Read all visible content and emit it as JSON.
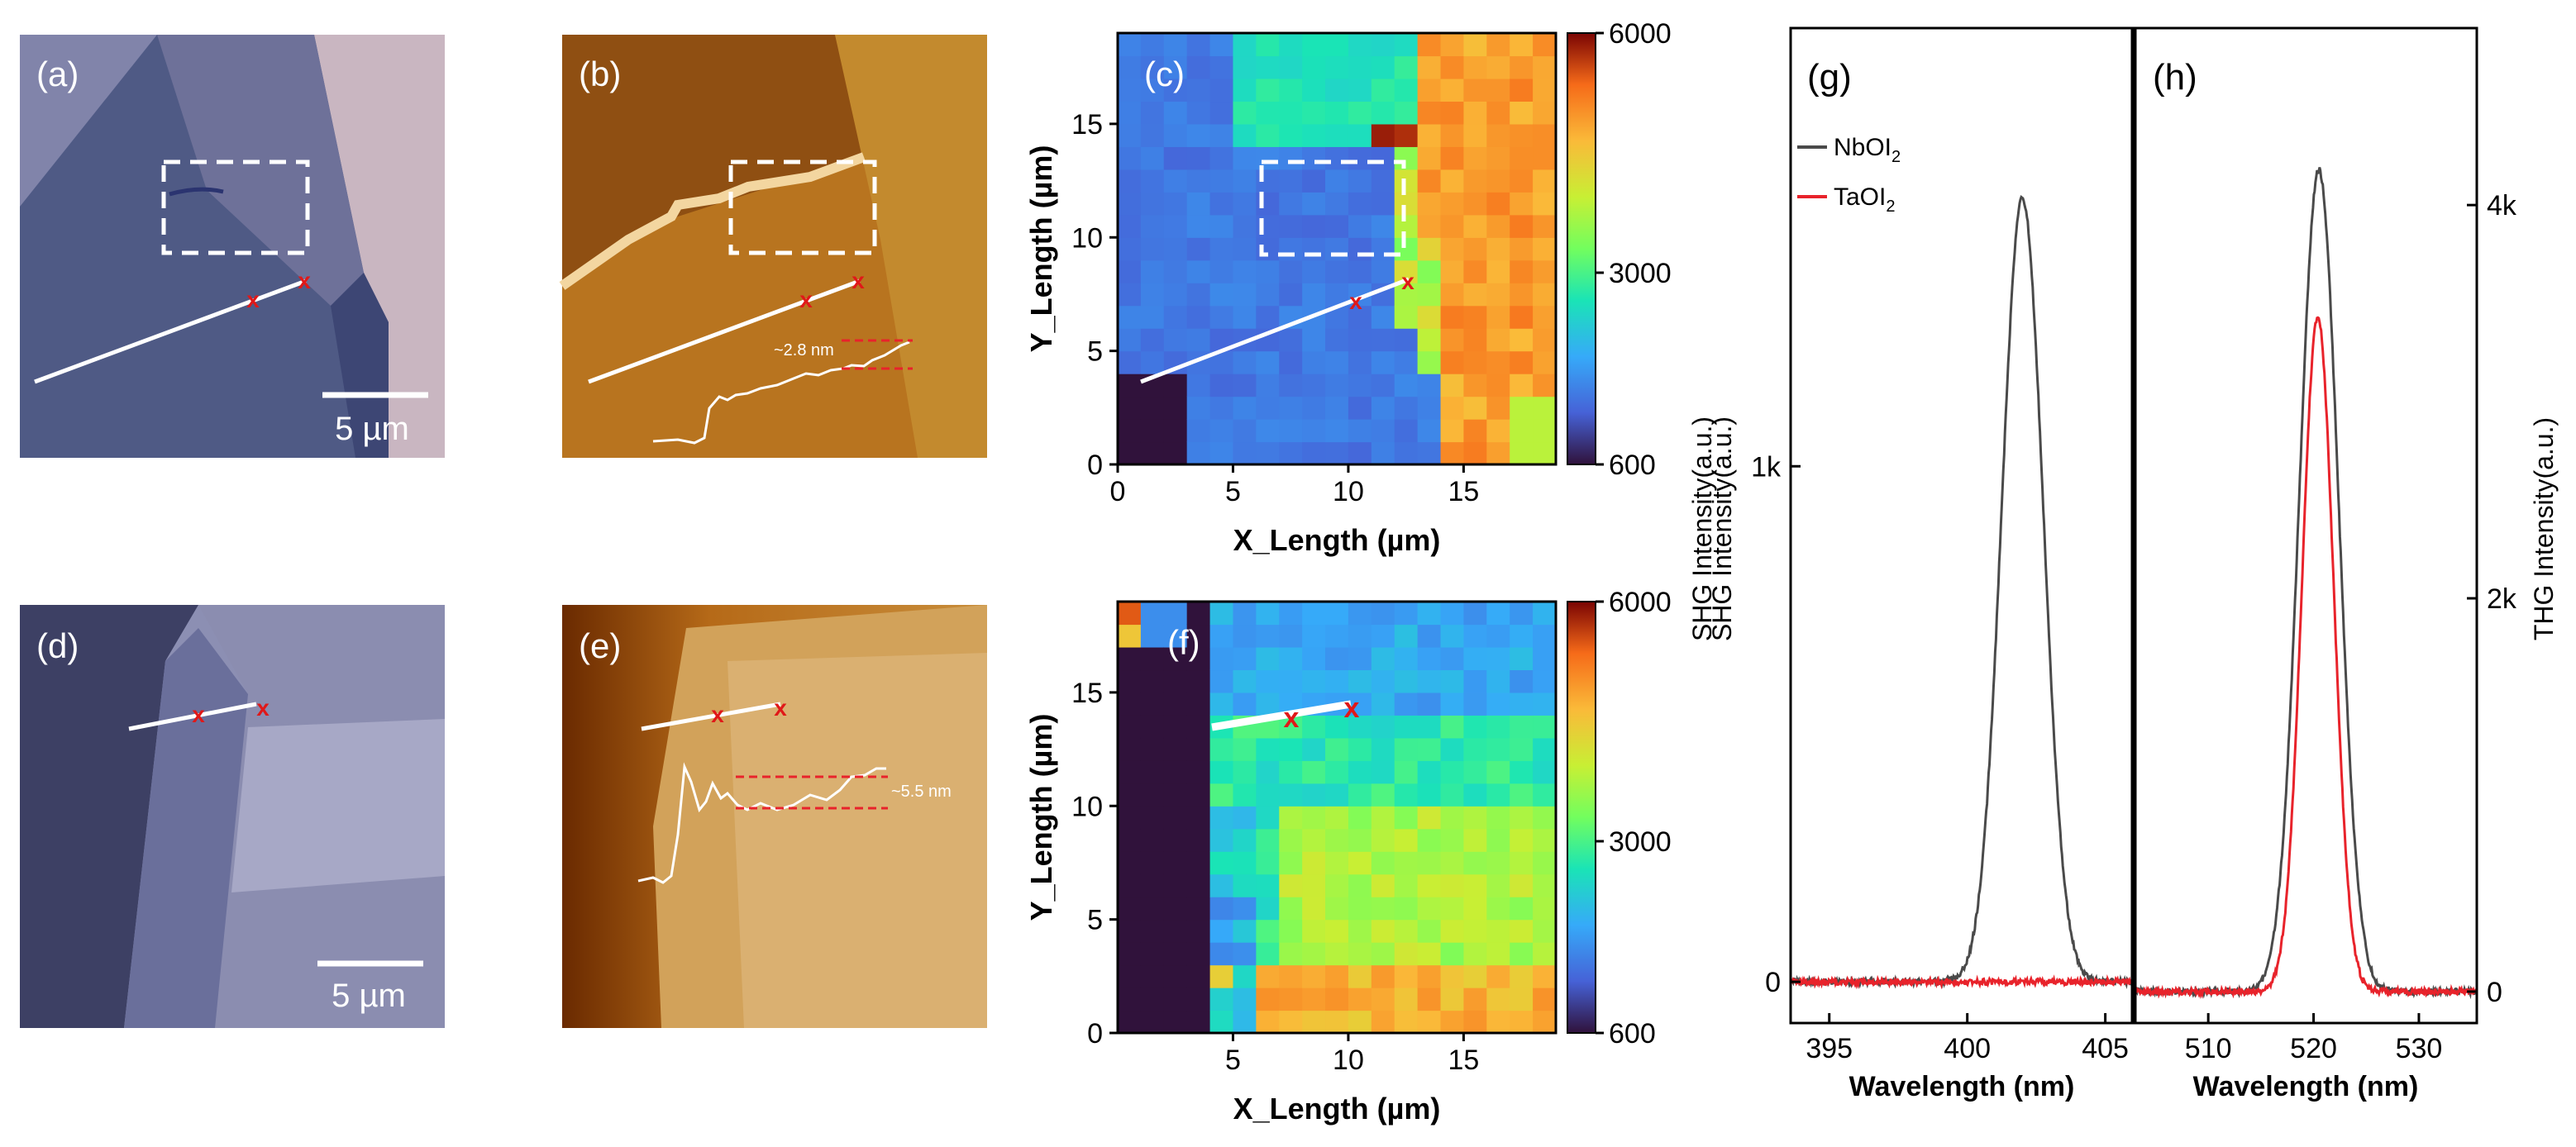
{
  "panels": {
    "a": {
      "label": "(a)",
      "scalebar": "5 µm"
    },
    "b": {
      "label": "(b)",
      "step": "~2.8 nm"
    },
    "c": {
      "label": "(c)"
    },
    "d": {
      "label": "(d)",
      "scalebar": "5 µm"
    },
    "e": {
      "label": "(e)",
      "step": "~5.5 nm"
    },
    "f": {
      "label": "(f)"
    },
    "g": {
      "label": "(g)"
    },
    "h": {
      "label": "(h)"
    }
  },
  "colors": {
    "nbo": "#4a4a4a",
    "tao": "#e8232b",
    "marker": "#e01818"
  },
  "chart_data": [
    {
      "id": "c",
      "type": "heatmap",
      "label": "(c)",
      "xlabel": "X_Length (µm)",
      "ylabel": "Y_Length (µm)",
      "xlim": [
        0,
        19
      ],
      "ylim": [
        0,
        19
      ],
      "xticks": [
        0,
        5,
        10,
        15
      ],
      "yticks": [
        0,
        5,
        10,
        15
      ],
      "colorbar": {
        "label": "SHG Intensity(a.u.)",
        "min": 600,
        "max": 6000,
        "ticks": [
          600,
          3000,
          6000
        ]
      },
      "grid_size": [
        19,
        19
      ],
      "description": "Bright orange/red region at the upper right (x>13 µm), green/cyan band at the top, dark blue flake region in the center-left, dark purple substrate at the lower left."
    },
    {
      "id": "f",
      "type": "heatmap",
      "label": "(f)",
      "xlabel": "X_Length (µm)",
      "ylabel": "Y_Length (µm)",
      "xlim": [
        0,
        19
      ],
      "ylim": [
        0,
        19
      ],
      "xticks": [
        5,
        10,
        15
      ],
      "yticks": [
        0,
        5,
        10,
        15
      ],
      "colorbar": {
        "label": "",
        "min": 600,
        "max": 6000,
        "ticks": [
          600,
          3000,
          6000
        ]
      },
      "grid_size": [
        19,
        19
      ],
      "description": "Dark purple substrate on the left (x<4 µm), blue/cyan flake across the top, green-yellow middle, orange-red bottom band (y<3 µm, x>6 µm)."
    },
    {
      "id": "g",
      "type": "line",
      "label": "(g)",
      "xlabel": "Wavelength (nm)",
      "ylabel": "SHG Intensity(a.u.)",
      "xlim": [
        393.6,
        406
      ],
      "ylim": [
        -80,
        1850
      ],
      "xticks": [
        395,
        400,
        405
      ],
      "yticks": [
        0,
        1000
      ],
      "ytick_labels": [
        "0",
        "1k"
      ],
      "series": [
        {
          "name": "NbOI2",
          "peak_x": 402.0,
          "peak_y": 1520,
          "sigma": 0.75,
          "baseline": 0
        },
        {
          "name": "TaOI2",
          "peak_x": 402.0,
          "peak_y": 0,
          "sigma": 0.75,
          "baseline": 0
        }
      ],
      "legend": [
        {
          "base": "NbOI",
          "sub": "2",
          "color": "#4a4a4a"
        },
        {
          "base": "TaOI",
          "sub": "2",
          "color": "#e8232b"
        }
      ]
    },
    {
      "id": "h",
      "type": "line",
      "label": "(h)",
      "xlabel": "Wavelength (nm)",
      "ylabel": "THG Intensity(a.u.)",
      "xlim": [
        503,
        535.5
      ],
      "ylim": [
        -160,
        4900
      ],
      "xticks": [
        510,
        520,
        530
      ],
      "yticks": [
        0,
        2000,
        4000
      ],
      "ytick_labels": [
        "0",
        "2k",
        "4k"
      ],
      "series": [
        {
          "name": "NbOI2",
          "peak_x": 520.5,
          "peak_y": 4180,
          "sigma": 1.85,
          "baseline": 0
        },
        {
          "name": "TaOI2",
          "peak_x": 520.4,
          "peak_y": 3430,
          "sigma": 1.5,
          "baseline": 0
        }
      ]
    }
  ]
}
